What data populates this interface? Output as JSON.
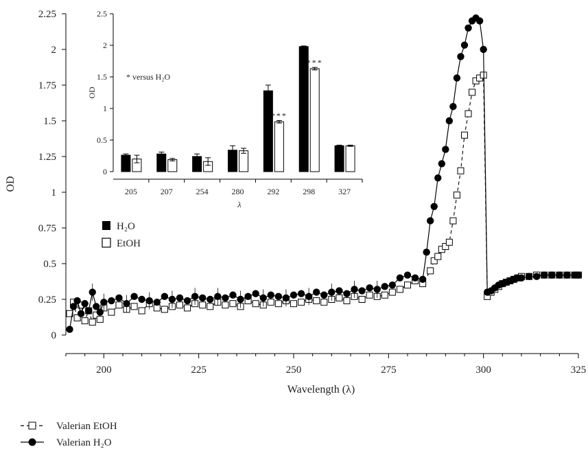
{
  "chart_data": [
    {
      "type": "line",
      "title": "",
      "xlabel": "Wavelength (λ)",
      "ylabel": "OD",
      "xlim": [
        190,
        325
      ],
      "ylim": [
        0,
        2.25
      ],
      "xticks": [
        "200",
        "225",
        "250",
        "275",
        "300",
        "325"
      ],
      "yticks": [
        "0",
        "0.25",
        "0.5",
        "0.75",
        "1",
        "1.25",
        "1.5",
        "1.75",
        "2",
        "2.25"
      ],
      "grid": false,
      "legend_position": "bottom-left",
      "series": [
        {
          "name": "Valerian EtOH",
          "marker": "open-square",
          "line": "dashed",
          "x": [
            191,
            192,
            193,
            194,
            195,
            196,
            197,
            198,
            199,
            200,
            202,
            204,
            206,
            208,
            210,
            212,
            214,
            216,
            218,
            220,
            222,
            224,
            226,
            228,
            230,
            232,
            234,
            236,
            238,
            240,
            242,
            244,
            246,
            248,
            250,
            252,
            254,
            256,
            258,
            260,
            262,
            264,
            266,
            268,
            270,
            272,
            274,
            276,
            278,
            280,
            282,
            284,
            286,
            287,
            288,
            289,
            290,
            291,
            292,
            293,
            294,
            295,
            296,
            297,
            298,
            299,
            300,
            301,
            302,
            303,
            304,
            305,
            306,
            307,
            308,
            309,
            310,
            312,
            314,
            316,
            318,
            320,
            322,
            324,
            325
          ],
          "y": [
            0.15,
            0.23,
            0.12,
            0.21,
            0.1,
            0.17,
            0.09,
            0.14,
            0.11,
            0.19,
            0.16,
            0.21,
            0.18,
            0.2,
            0.17,
            0.22,
            0.19,
            0.18,
            0.2,
            0.21,
            0.19,
            0.22,
            0.21,
            0.2,
            0.23,
            0.21,
            0.22,
            0.2,
            0.24,
            0.22,
            0.21,
            0.23,
            0.22,
            0.24,
            0.22,
            0.23,
            0.25,
            0.24,
            0.23,
            0.25,
            0.26,
            0.24,
            0.27,
            0.25,
            0.28,
            0.27,
            0.28,
            0.3,
            0.32,
            0.35,
            0.38,
            0.36,
            0.45,
            0.52,
            0.55,
            0.6,
            0.62,
            0.65,
            0.8,
            0.98,
            1.15,
            1.4,
            1.55,
            1.7,
            1.78,
            1.8,
            1.82,
            0.27,
            0.3,
            0.32,
            0.34,
            0.36,
            0.37,
            0.38,
            0.39,
            0.4,
            0.41,
            0.41,
            0.42,
            0.42,
            0.42,
            0.42,
            0.42,
            0.42,
            0.42
          ]
        },
        {
          "name": "Valerian H₂O",
          "marker": "filled-circle",
          "line": "solid",
          "x": [
            191,
            192,
            193,
            194,
            195,
            196,
            197,
            198,
            199,
            200,
            202,
            204,
            206,
            208,
            210,
            212,
            214,
            216,
            218,
            220,
            222,
            224,
            226,
            228,
            230,
            232,
            234,
            236,
            238,
            240,
            242,
            244,
            246,
            248,
            250,
            252,
            254,
            256,
            258,
            260,
            262,
            264,
            266,
            268,
            270,
            272,
            274,
            276,
            278,
            280,
            282,
            284,
            285,
            286,
            287,
            288,
            289,
            290,
            291,
            292,
            293,
            294,
            295,
            296,
            297,
            298,
            299,
            300,
            301,
            302,
            303,
            304,
            305,
            306,
            307,
            308,
            309,
            310,
            312,
            314,
            316,
            318,
            320,
            322,
            324,
            325
          ],
          "y": [
            0.04,
            0.2,
            0.24,
            0.15,
            0.22,
            0.17,
            0.3,
            0.2,
            0.16,
            0.23,
            0.24,
            0.26,
            0.22,
            0.27,
            0.25,
            0.24,
            0.23,
            0.27,
            0.25,
            0.26,
            0.24,
            0.27,
            0.26,
            0.25,
            0.27,
            0.26,
            0.28,
            0.25,
            0.27,
            0.29,
            0.26,
            0.28,
            0.27,
            0.26,
            0.28,
            0.29,
            0.27,
            0.3,
            0.28,
            0.3,
            0.31,
            0.29,
            0.32,
            0.31,
            0.33,
            0.32,
            0.34,
            0.35,
            0.4,
            0.42,
            0.4,
            0.39,
            0.58,
            0.8,
            0.9,
            1.1,
            1.2,
            1.3,
            1.5,
            1.6,
            1.8,
            1.95,
            2.03,
            2.15,
            2.2,
            2.22,
            2.2,
            2.0,
            0.3,
            0.31,
            0.33,
            0.35,
            0.36,
            0.37,
            0.38,
            0.39,
            0.4,
            0.4,
            0.41,
            0.41,
            0.42,
            0.42,
            0.42,
            0.42,
            0.42,
            0.42
          ]
        }
      ]
    },
    {
      "type": "bar",
      "title": "",
      "xlabel": "λ",
      "ylabel": "OD",
      "ylim": [
        0,
        2.5
      ],
      "yticks": [
        "0",
        "0.5",
        "1",
        "1.5",
        "2",
        "2.5"
      ],
      "categories": [
        "205",
        "207",
        "254",
        "280",
        "292",
        "298",
        "327"
      ],
      "series": [
        {
          "name": "H₂O",
          "color": "#000000",
          "values": [
            0.26,
            0.28,
            0.24,
            0.34,
            1.28,
            1.98,
            0.41
          ],
          "errors": [
            0.02,
            0.03,
            0.04,
            0.07,
            0.09,
            0.01,
            0.01
          ]
        },
        {
          "name": "EtOH",
          "color": "#ffffff",
          "values": [
            0.2,
            0.19,
            0.16,
            0.33,
            0.79,
            1.63,
            0.41
          ],
          "errors": [
            0.06,
            0.02,
            0.06,
            0.04,
            0.02,
            0.02,
            0.01
          ]
        }
      ],
      "annotations": [
        {
          "category": "292",
          "series": "EtOH",
          "text": "***"
        },
        {
          "category": "298",
          "series": "EtOH",
          "text": "***"
        }
      ],
      "note": "* versus H₂O"
    }
  ]
}
